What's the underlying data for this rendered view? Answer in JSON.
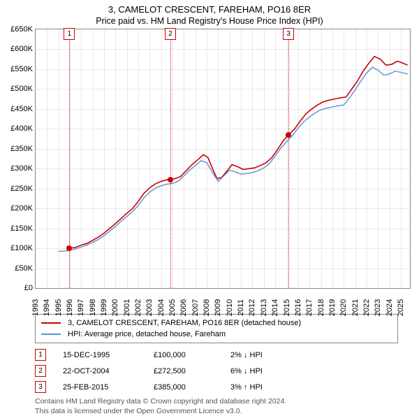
{
  "title": "3, CAMELOT CRESCENT, FAREHAM, PO16 8ER",
  "subtitle": "Price paid vs. HM Land Registry's House Price Index (HPI)",
  "chart": {
    "type": "line",
    "x_range": [
      1993,
      2025.8
    ],
    "y_range": [
      0,
      650000
    ],
    "y_ticks": [
      0,
      50000,
      100000,
      150000,
      200000,
      250000,
      300000,
      350000,
      400000,
      450000,
      500000,
      550000,
      600000,
      650000
    ],
    "y_tick_labels": [
      "£0",
      "£50K",
      "£100K",
      "£150K",
      "£200K",
      "£250K",
      "£300K",
      "£350K",
      "£400K",
      "£450K",
      "£500K",
      "£550K",
      "£600K",
      "£650K"
    ],
    "x_ticks": [
      1993,
      1994,
      1995,
      1996,
      1997,
      1998,
      1999,
      2000,
      2001,
      2002,
      2003,
      2004,
      2005,
      2006,
      2007,
      2008,
      2009,
      2010,
      2011,
      2012,
      2013,
      2014,
      2015,
      2016,
      2017,
      2018,
      2019,
      2020,
      2021,
      2022,
      2023,
      2024,
      2025
    ],
    "background_color": "#ffffff",
    "grid_color": "#e8e8e8",
    "border_color": "#888888",
    "series": [
      {
        "name": "property",
        "color": "#cc0000",
        "line_width": 1.6,
        "points": [
          [
            1995.96,
            100000
          ],
          [
            1996.5,
            102000
          ],
          [
            1997,
            108000
          ],
          [
            1997.5,
            112000
          ],
          [
            1998,
            120000
          ],
          [
            1998.5,
            128000
          ],
          [
            1999,
            138000
          ],
          [
            1999.5,
            150000
          ],
          [
            2000,
            162000
          ],
          [
            2000.5,
            175000
          ],
          [
            2001,
            188000
          ],
          [
            2001.5,
            200000
          ],
          [
            2002,
            218000
          ],
          [
            2002.5,
            238000
          ],
          [
            2003,
            252000
          ],
          [
            2003.5,
            262000
          ],
          [
            2004,
            268000
          ],
          [
            2004.5,
            272000
          ],
          [
            2004.81,
            272500
          ],
          [
            2005.2,
            275000
          ],
          [
            2005.7,
            280000
          ],
          [
            2006.2,
            295000
          ],
          [
            2006.7,
            310000
          ],
          [
            2007.2,
            322000
          ],
          [
            2007.7,
            335000
          ],
          [
            2008.1,
            328000
          ],
          [
            2008.5,
            300000
          ],
          [
            2008.9,
            275000
          ],
          [
            2009.3,
            278000
          ],
          [
            2009.8,
            295000
          ],
          [
            2010.2,
            310000
          ],
          [
            2010.7,
            305000
          ],
          [
            2011.2,
            298000
          ],
          [
            2011.7,
            300000
          ],
          [
            2012.2,
            302000
          ],
          [
            2012.7,
            308000
          ],
          [
            2013.2,
            315000
          ],
          [
            2013.7,
            328000
          ],
          [
            2014.2,
            348000
          ],
          [
            2014.7,
            370000
          ],
          [
            2015.16,
            385000
          ],
          [
            2015.7,
            400000
          ],
          [
            2016.2,
            420000
          ],
          [
            2016.7,
            438000
          ],
          [
            2017.2,
            450000
          ],
          [
            2017.7,
            460000
          ],
          [
            2018.2,
            468000
          ],
          [
            2018.7,
            472000
          ],
          [
            2019.2,
            475000
          ],
          [
            2019.7,
            478000
          ],
          [
            2020.2,
            480000
          ],
          [
            2020.7,
            500000
          ],
          [
            2021.2,
            520000
          ],
          [
            2021.7,
            545000
          ],
          [
            2022.2,
            565000
          ],
          [
            2022.7,
            582000
          ],
          [
            2023.2,
            575000
          ],
          [
            2023.7,
            560000
          ],
          [
            2024.2,
            562000
          ],
          [
            2024.7,
            570000
          ],
          [
            2025.2,
            565000
          ],
          [
            2025.6,
            560000
          ]
        ]
      },
      {
        "name": "hpi",
        "color": "#5b8fd6",
        "line_width": 1.4,
        "points": [
          [
            1995.0,
            92000
          ],
          [
            1995.5,
            93000
          ],
          [
            1996,
            95000
          ],
          [
            1996.5,
            98000
          ],
          [
            1997,
            103000
          ],
          [
            1997.5,
            108000
          ],
          [
            1998,
            115000
          ],
          [
            1998.5,
            122000
          ],
          [
            1999,
            132000
          ],
          [
            1999.5,
            143000
          ],
          [
            2000,
            155000
          ],
          [
            2000.5,
            168000
          ],
          [
            2001,
            180000
          ],
          [
            2001.5,
            192000
          ],
          [
            2002,
            208000
          ],
          [
            2002.5,
            227000
          ],
          [
            2003,
            241000
          ],
          [
            2003.5,
            251000
          ],
          [
            2004,
            257000
          ],
          [
            2004.5,
            261000
          ],
          [
            2005,
            263000
          ],
          [
            2005.5,
            268000
          ],
          [
            2006,
            282000
          ],
          [
            2006.5,
            296000
          ],
          [
            2007,
            308000
          ],
          [
            2007.5,
            320000
          ],
          [
            2008,
            315000
          ],
          [
            2008.5,
            290000
          ],
          [
            2009,
            268000
          ],
          [
            2009.5,
            282000
          ],
          [
            2010,
            296000
          ],
          [
            2010.5,
            292000
          ],
          [
            2011,
            286000
          ],
          [
            2011.5,
            288000
          ],
          [
            2012,
            290000
          ],
          [
            2012.5,
            295000
          ],
          [
            2013,
            302000
          ],
          [
            2013.5,
            313000
          ],
          [
            2014,
            332000
          ],
          [
            2014.5,
            352000
          ],
          [
            2015,
            368000
          ],
          [
            2015.5,
            383000
          ],
          [
            2016,
            402000
          ],
          [
            2016.5,
            418000
          ],
          [
            2017,
            430000
          ],
          [
            2017.5,
            440000
          ],
          [
            2018,
            448000
          ],
          [
            2018.5,
            452000
          ],
          [
            2019,
            455000
          ],
          [
            2019.5,
            458000
          ],
          [
            2020,
            460000
          ],
          [
            2020.5,
            478000
          ],
          [
            2021,
            498000
          ],
          [
            2021.5,
            520000
          ],
          [
            2022,
            540000
          ],
          [
            2022.5,
            555000
          ],
          [
            2023,
            548000
          ],
          [
            2023.5,
            535000
          ],
          [
            2024,
            538000
          ],
          [
            2024.5,
            545000
          ],
          [
            2025,
            542000
          ],
          [
            2025.6,
            538000
          ]
        ]
      }
    ],
    "markers": [
      {
        "n": "1",
        "x": 1995.96,
        "y": 100000
      },
      {
        "n": "2",
        "x": 2004.81,
        "y": 272500
      },
      {
        "n": "3",
        "x": 2015.16,
        "y": 385000
      }
    ]
  },
  "legend": {
    "items": [
      {
        "color": "#cc0000",
        "label": "3, CAMELOT CRESCENT, FAREHAM, PO16 8ER (detached house)"
      },
      {
        "color": "#5b8fd6",
        "label": "HPI: Average price, detached house, Fareham"
      }
    ]
  },
  "marker_table": [
    {
      "n": "1",
      "date": "15-DEC-1995",
      "price": "£100,000",
      "hpi": "2% ↓ HPI"
    },
    {
      "n": "2",
      "date": "22-OCT-2004",
      "price": "£272,500",
      "hpi": "6% ↓ HPI"
    },
    {
      "n": "3",
      "date": "25-FEB-2015",
      "price": "£385,000",
      "hpi": "3% ↑ HPI"
    }
  ],
  "footer": {
    "line1": "Contains HM Land Registry data © Crown copyright and database right 2024.",
    "line2": "This data is licensed under the Open Government Licence v3.0."
  }
}
